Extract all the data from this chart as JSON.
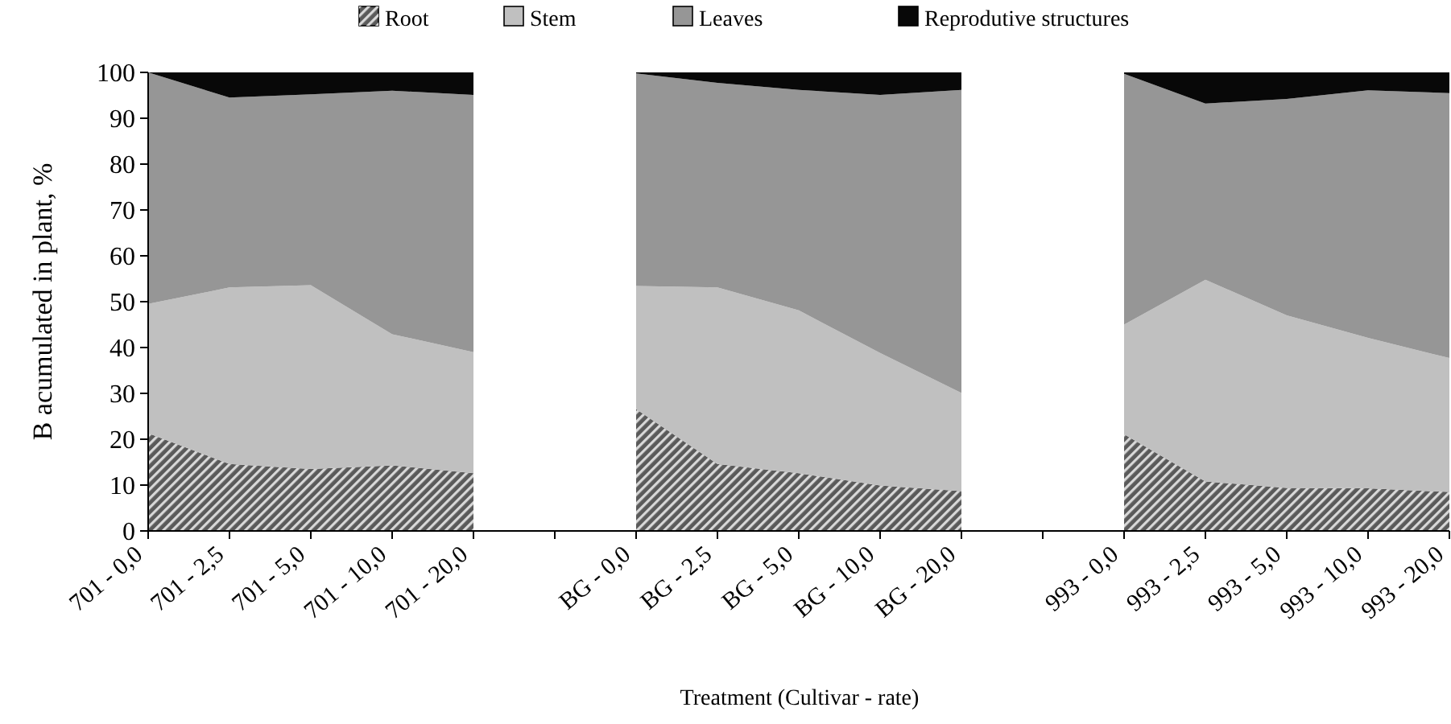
{
  "chart_data": {
    "type": "area",
    "stacked": true,
    "xlabel": "Treatment (Cultivar - rate)",
    "ylabel": "B acumulated in plant, %",
    "categories": [
      "701 - 0,0",
      "701 - 2,5",
      "701 - 5,0",
      "701 - 10,0",
      "701 - 20,0",
      null,
      "BG - 0,0",
      "BG - 2,5",
      "BG - 5,0",
      "BG - 10,0",
      "BG - 20,0",
      null,
      "993 - 0,0",
      "993 - 2,5",
      "993 - 5,0",
      "993 - 10,0",
      "993 - 20,0"
    ],
    "series": [
      {
        "name": "Root",
        "color": "#5a5a5a",
        "values": [
          21.3,
          14.6,
          13.5,
          14.3,
          12.6,
          null,
          26.6,
          14.6,
          12.6,
          9.9,
          8.7,
          null,
          21.1,
          10.8,
          9.4,
          9.3,
          8.5
        ]
      },
      {
        "name": "Stem",
        "color": "#c0c0c0",
        "values": [
          28.2,
          38.5,
          40.1,
          28.6,
          26.4,
          null,
          26.8,
          38.5,
          35.5,
          28.9,
          21.4,
          null,
          23.9,
          44.0,
          37.6,
          32.8,
          29.2
        ]
      },
      {
        "name": "Leaves",
        "color": "#969696",
        "values": [
          50.5,
          41.4,
          41.6,
          53.1,
          56.1,
          null,
          46.4,
          44.6,
          48.1,
          56.3,
          66.1,
          null,
          54.7,
          38.4,
          47.2,
          54.0,
          57.8
        ]
      },
      {
        "name": "Reprodutive structures",
        "color": "#080808",
        "values": [
          0,
          5.5,
          4.8,
          4.0,
          4.9,
          null,
          0.2,
          2.3,
          3.8,
          4.9,
          3.8,
          null,
          0.3,
          6.8,
          5.8,
          3.9,
          4.5
        ]
      }
    ],
    "ylim": [
      0,
      100
    ],
    "yticks": [
      0,
      10,
      20,
      30,
      40,
      50,
      60,
      70,
      80,
      90,
      100
    ],
    "legend": "top",
    "grid": false
  }
}
